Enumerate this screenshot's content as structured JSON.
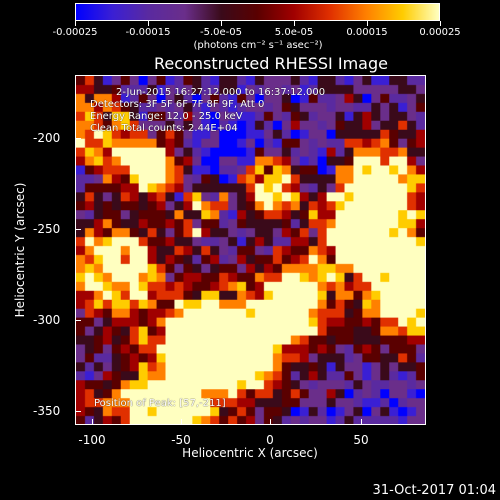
{
  "colorbar": {
    "labels": [
      "-0.00025",
      "-0.00015",
      "-5.0e-05",
      "5.0e-05",
      "0.00015",
      "0.00025"
    ],
    "units": "(photons cm⁻² s⁻¹ asec⁻²)",
    "colors": [
      "#0000ff",
      "#3a1fd4",
      "#5a2aa0",
      "#6a2e8a",
      "#3a0a1a",
      "#5a0000",
      "#a00000",
      "#e03000",
      "#ff8000",
      "#ffcc00",
      "#ffffc0"
    ]
  },
  "title": "Reconstructed RHESSI Image",
  "annotations": {
    "time": "2-Jun-2015 16:27:12.000 to 16:37:12.000",
    "detectors": "Detectors: 3F 5F 6F 7F 8F 9F, Att 0",
    "energy": "Energy Range: 12.0 - 25.0 keV",
    "clean": "Clean     Total counts: 2.44E+04",
    "peak": "Position of Peak: [57,-211]"
  },
  "axes": {
    "xlabel": "Heliocentric X (arcsec)",
    "ylabel": "Heliocentric Y (arcsec)",
    "xticks": [
      "-100",
      "-50",
      "0",
      "50"
    ],
    "yticks": [
      "-200",
      "-250",
      "-300",
      "-350"
    ]
  },
  "footer_date": "31-Oct-2017 01:04"
}
